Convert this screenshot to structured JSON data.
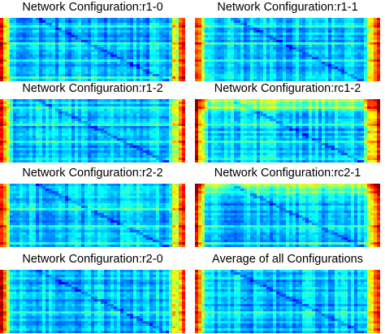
{
  "chart_data": [
    {
      "type": "heatmap",
      "title": "Network Configuration:r1-0",
      "colormap": "jet"
    },
    {
      "type": "heatmap",
      "title": "Network Configuration:r1-1",
      "colormap": "jet"
    },
    {
      "type": "heatmap",
      "title": "Network Configuration:r1-2",
      "colormap": "jet"
    },
    {
      "type": "heatmap",
      "title": "Network Configuration:rc1-2",
      "colormap": "jet"
    },
    {
      "type": "heatmap",
      "title": "Network Configuration:r2-2",
      "colormap": "jet"
    },
    {
      "type": "heatmap",
      "title": "Network Configuration:rc2-1",
      "colormap": "jet"
    },
    {
      "type": "heatmap",
      "title": "Network Configuration:r2-0",
      "colormap": "jet"
    },
    {
      "type": "heatmap",
      "title": "Average of all Configurations",
      "colormap": "jet"
    }
  ]
}
